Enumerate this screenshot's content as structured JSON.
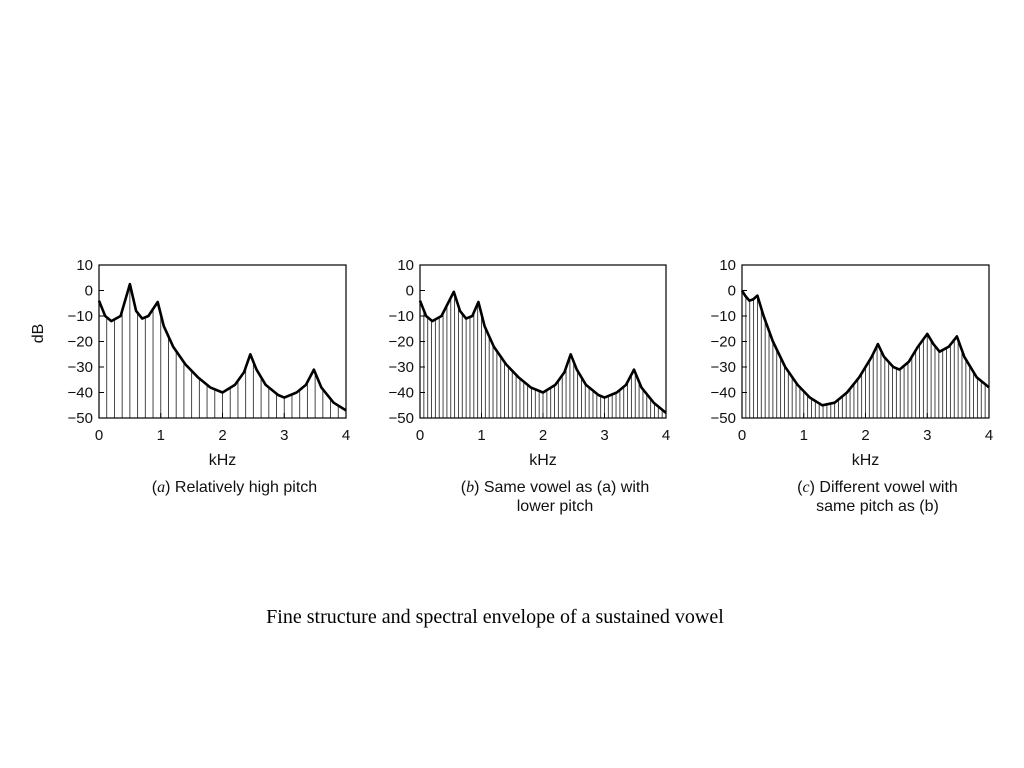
{
  "figure_caption": "Fine structure and spectral envelope of a sustained vowel",
  "chart_data": [
    {
      "type": "line",
      "panel": "a",
      "caption_prefix": "(",
      "caption_letter": "a",
      "caption_lines": [
        ") Relatively high pitch"
      ],
      "xlabel": "kHz",
      "ylabel": "dB",
      "xlim": [
        0,
        4
      ],
      "ylim": [
        -50,
        10
      ],
      "x_ticks": [
        "0",
        "1",
        "2",
        "3",
        "4"
      ],
      "y_ticks": [
        "10",
        "0",
        "−10",
        "−20",
        "−30",
        "−40",
        "−50"
      ],
      "harmonic_spacing_khz": 0.125,
      "envelope": [
        [
          0.0,
          -4
        ],
        [
          0.1,
          -10
        ],
        [
          0.2,
          -12
        ],
        [
          0.35,
          -10
        ],
        [
          0.5,
          2.5
        ],
        [
          0.6,
          -8
        ],
        [
          0.7,
          -11
        ],
        [
          0.8,
          -10
        ],
        [
          0.95,
          -4.5
        ],
        [
          1.05,
          -14
        ],
        [
          1.2,
          -22
        ],
        [
          1.4,
          -29
        ],
        [
          1.6,
          -34
        ],
        [
          1.8,
          -38
        ],
        [
          2.0,
          -40
        ],
        [
          2.2,
          -37
        ],
        [
          2.35,
          -32
        ],
        [
          2.45,
          -25
        ],
        [
          2.55,
          -31
        ],
        [
          2.7,
          -37
        ],
        [
          2.9,
          -41
        ],
        [
          3.0,
          -42
        ],
        [
          3.2,
          -40
        ],
        [
          3.35,
          -37
        ],
        [
          3.48,
          -31
        ],
        [
          3.6,
          -38
        ],
        [
          3.8,
          -44
        ],
        [
          4.0,
          -47
        ]
      ]
    },
    {
      "type": "line",
      "panel": "b",
      "caption_prefix": "(",
      "caption_letter": "b",
      "caption_lines": [
        ") Same vowel as (a) with",
        "lower pitch"
      ],
      "xlabel": "kHz",
      "ylabel": "",
      "xlim": [
        0,
        4
      ],
      "ylim": [
        -50,
        10
      ],
      "x_ticks": [
        "0",
        "1",
        "2",
        "3",
        "4"
      ],
      "y_ticks": [
        "10",
        "0",
        "−10",
        "−20",
        "−30",
        "−40",
        "−50"
      ],
      "harmonic_spacing_khz": 0.0625,
      "envelope": [
        [
          0.0,
          -4
        ],
        [
          0.1,
          -10
        ],
        [
          0.2,
          -12
        ],
        [
          0.35,
          -10
        ],
        [
          0.55,
          -0.5
        ],
        [
          0.65,
          -8
        ],
        [
          0.75,
          -11
        ],
        [
          0.85,
          -10
        ],
        [
          0.95,
          -4.5
        ],
        [
          1.05,
          -14
        ],
        [
          1.2,
          -22
        ],
        [
          1.4,
          -29
        ],
        [
          1.6,
          -34
        ],
        [
          1.8,
          -38
        ],
        [
          2.0,
          -40
        ],
        [
          2.2,
          -37
        ],
        [
          2.35,
          -32
        ],
        [
          2.45,
          -25
        ],
        [
          2.55,
          -31
        ],
        [
          2.7,
          -37
        ],
        [
          2.9,
          -41
        ],
        [
          3.0,
          -42
        ],
        [
          3.2,
          -40
        ],
        [
          3.35,
          -37
        ],
        [
          3.48,
          -31
        ],
        [
          3.6,
          -38
        ],
        [
          3.8,
          -44
        ],
        [
          4.0,
          -48
        ]
      ]
    },
    {
      "type": "line",
      "panel": "c",
      "caption_prefix": "(",
      "caption_letter": "c",
      "caption_lines": [
        ") Different vowel with",
        "same pitch as (b)"
      ],
      "xlabel": "kHz",
      "ylabel": "",
      "xlim": [
        0,
        4
      ],
      "ylim": [
        -50,
        10
      ],
      "x_ticks": [
        "0",
        "1",
        "2",
        "3",
        "4"
      ],
      "y_ticks": [
        "10",
        "0",
        "−10",
        "−20",
        "−30",
        "−40",
        "−50"
      ],
      "harmonic_spacing_khz": 0.0625,
      "envelope": [
        [
          0.0,
          0
        ],
        [
          0.05,
          -2
        ],
        [
          0.12,
          -4
        ],
        [
          0.18,
          -3.5
        ],
        [
          0.25,
          -2
        ],
        [
          0.35,
          -10
        ],
        [
          0.5,
          -20
        ],
        [
          0.7,
          -30
        ],
        [
          0.9,
          -37
        ],
        [
          1.1,
          -42
        ],
        [
          1.3,
          -45
        ],
        [
          1.5,
          -44
        ],
        [
          1.7,
          -40
        ],
        [
          1.9,
          -34
        ],
        [
          2.1,
          -26
        ],
        [
          2.2,
          -21
        ],
        [
          2.3,
          -26
        ],
        [
          2.45,
          -30
        ],
        [
          2.55,
          -31
        ],
        [
          2.7,
          -28
        ],
        [
          2.85,
          -22
        ],
        [
          3.0,
          -17
        ],
        [
          3.1,
          -21
        ],
        [
          3.2,
          -24
        ],
        [
          3.35,
          -22
        ],
        [
          3.48,
          -18
        ],
        [
          3.6,
          -26
        ],
        [
          3.8,
          -34
        ],
        [
          4.0,
          -38
        ]
      ]
    }
  ]
}
